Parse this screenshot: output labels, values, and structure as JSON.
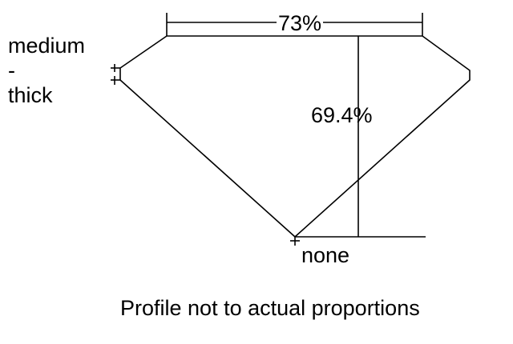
{
  "diagram": {
    "girdle_label": [
      "medium",
      "-",
      "thick"
    ],
    "table_percent": "73%",
    "depth_percent": "69.4%",
    "culet_label": "none",
    "note": "Profile not to actual proportions",
    "line_color": "#000000",
    "background": "#ffffff"
  }
}
